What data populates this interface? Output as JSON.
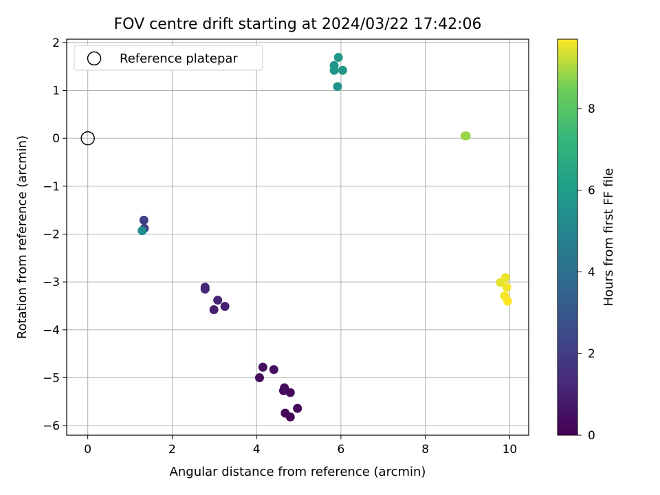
{
  "chart_data": {
    "type": "scatter",
    "title": "FOV centre drift starting at 2024/03/22 17:42:06",
    "xlabel": "Angular distance from reference (arcmin)",
    "ylabel": "Rotation from reference (arcmin)",
    "xlim": [
      -0.5,
      10.45
    ],
    "ylim": [
      -6.2,
      2.07
    ],
    "xticks": [
      0,
      2,
      4,
      6,
      8,
      10
    ],
    "yticks": [
      -6,
      -5,
      -4,
      -3,
      -2,
      -1,
      0,
      1,
      2
    ],
    "grid": true,
    "legend": {
      "placement": "top-left",
      "entries": [
        "Reference platepar"
      ]
    },
    "reference": {
      "label": "Reference platepar",
      "x": 0,
      "y": 0,
      "marker": "open-circle"
    },
    "colorbar": {
      "label": "Hours from first FF file",
      "colormap": "viridis",
      "min": 0,
      "max": 9.7,
      "ticks": [
        0,
        2,
        4,
        6,
        8
      ]
    },
    "points": [
      {
        "x": 4.97,
        "y": -5.64,
        "hours": 0.05
      },
      {
        "x": 4.8,
        "y": -5.82,
        "hours": 0.1
      },
      {
        "x": 4.68,
        "y": -5.74,
        "hours": 0.15
      },
      {
        "x": 4.8,
        "y": -5.31,
        "hours": 0.2
      },
      {
        "x": 4.64,
        "y": -5.27,
        "hours": 0.25
      },
      {
        "x": 4.66,
        "y": -5.21,
        "hours": 0.3
      },
      {
        "x": 4.07,
        "y": -5.0,
        "hours": 0.35
      },
      {
        "x": 4.15,
        "y": -4.78,
        "hours": 0.4
      },
      {
        "x": 4.41,
        "y": -4.83,
        "hours": 0.45
      },
      {
        "x": 2.99,
        "y": -3.58,
        "hours": 0.95
      },
      {
        "x": 3.25,
        "y": -3.51,
        "hours": 1.0
      },
      {
        "x": 3.08,
        "y": -3.38,
        "hours": 1.05
      },
      {
        "x": 2.78,
        "y": -3.11,
        "hours": 1.1
      },
      {
        "x": 2.78,
        "y": -3.15,
        "hours": 1.15
      },
      {
        "x": 1.34,
        "y": -1.88,
        "hours": 2.0
      },
      {
        "x": 1.33,
        "y": -1.71,
        "hours": 2.05
      },
      {
        "x": 1.29,
        "y": -1.93,
        "hours": 5.3
      },
      {
        "x": 5.92,
        "y": 1.08,
        "hours": 5.6
      },
      {
        "x": 5.84,
        "y": 1.52,
        "hours": 5.65
      },
      {
        "x": 5.84,
        "y": 1.42,
        "hours": 5.7
      },
      {
        "x": 6.04,
        "y": 1.42,
        "hours": 5.75
      },
      {
        "x": 5.94,
        "y": 1.69,
        "hours": 5.8
      },
      {
        "x": 8.97,
        "y": 0.05,
        "hours": 8.8
      },
      {
        "x": 8.94,
        "y": 0.05,
        "hours": 8.85
      },
      {
        "x": 9.78,
        "y": -3.01,
        "hours": 9.5
      },
      {
        "x": 9.9,
        "y": -2.91,
        "hours": 9.55
      },
      {
        "x": 9.93,
        "y": -3.11,
        "hours": 9.6
      },
      {
        "x": 9.88,
        "y": -3.29,
        "hours": 9.65
      },
      {
        "x": 9.95,
        "y": -3.4,
        "hours": 9.7
      }
    ]
  }
}
